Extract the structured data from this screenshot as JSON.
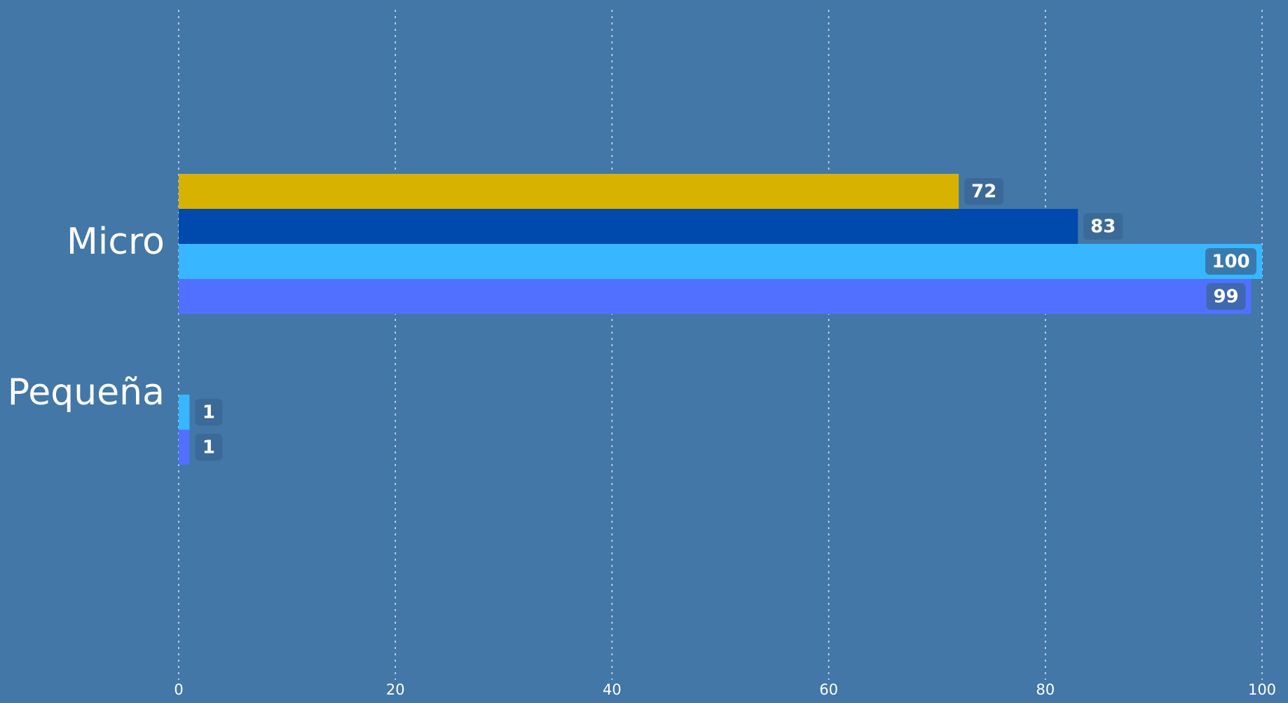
{
  "colors": {
    "background": "#4277a7",
    "gridline": "#d6dde6",
    "tick_text": "#ffffff",
    "category_text": "#ffffff",
    "label_box": "#3a6593",
    "label_text": "#ffffff"
  },
  "chart_data": {
    "type": "bar",
    "orientation": "horizontal",
    "categories": [
      "Micro",
      "Pequeña"
    ],
    "series": [
      {
        "color": "#d8b200",
        "values": [
          72,
          null
        ]
      },
      {
        "color": "#004aad",
        "values": [
          83,
          null
        ]
      },
      {
        "color": "#38b6ff",
        "values": [
          100,
          1
        ]
      },
      {
        "color": "#5170ff",
        "values": [
          99,
          1
        ]
      }
    ],
    "xlim": [
      0,
      100
    ],
    "x_ticks": [
      0,
      20,
      40,
      60,
      80,
      100
    ],
    "grid": "vertical-dotted",
    "data_labels": true,
    "title": "",
    "xlabel": "",
    "ylabel": ""
  }
}
